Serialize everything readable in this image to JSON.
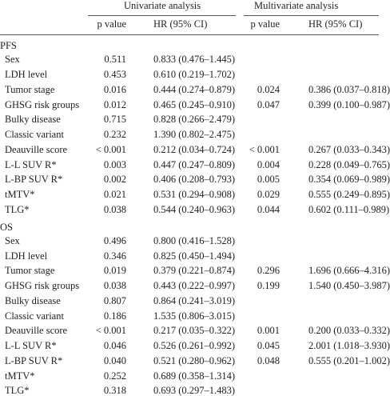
{
  "table": {
    "groups": [
      "Univariate analysis",
      "Multivariate analysis"
    ],
    "subheaders": [
      "p value",
      "HR (95% CI)",
      "p value",
      "HR (95% CI)"
    ],
    "sections": [
      {
        "label": "PFS",
        "rows": [
          [
            "Sex",
            "0.511",
            "0.833 (0.476–1.445)",
            null,
            null
          ],
          [
            "LDH level",
            "0.453",
            "0.610 (0.219–1.702)",
            null,
            null
          ],
          [
            "Tumor stage",
            "0.016",
            "0.444 (0.274–0.879)",
            "0.024",
            "0.386 (0.037–0.818)"
          ],
          [
            "GHSG risk groups",
            "0.012",
            "0.465 (0.245–0.910)",
            "0.047",
            "0.399 (0.100–0.987)"
          ],
          [
            "Bulky disease",
            "0.715",
            "0.828 (0.266–2.479)",
            null,
            null
          ],
          [
            "Classic variant",
            "0.232",
            "1.390 (0.802–2.475)",
            null,
            null
          ],
          [
            "Deauville score",
            "< 0.001",
            "0.212 (0.034–0.724)",
            "< 0.001",
            "0.267 (0.033–0.343)"
          ],
          [
            "L-L SUV R*",
            "0.003",
            "0.447 (0.247–0.809)",
            "0.004",
            "0.228 (0.049–0.765)"
          ],
          [
            "L-BP SUV R*",
            "0.002",
            "0.406 (0.208–0.793)",
            "0.005",
            "0.354 (0.069–0.989)"
          ],
          [
            "tMTV*",
            "0.021",
            "0.531 (0.294–0.908)",
            "0.029",
            "0.555 (0.249–0.895)"
          ],
          [
            "TLG*",
            "0.038",
            "0.544 (0.240–0.963)",
            "0.044",
            "0.602 (0.111–0.989)"
          ]
        ]
      },
      {
        "label": "OS",
        "rows": [
          [
            "Sex",
            "0.496",
            "0.800 (0.416–1.528)",
            null,
            null
          ],
          [
            "LDH level",
            "0.346",
            "0.825 (0.450–1.494)",
            null,
            null
          ],
          [
            "Tumor stage",
            "0.019",
            "0.379 (0.221–0.874)",
            "0.296",
            "1.696 (0.666–4.316)"
          ],
          [
            "GHSG risk groups",
            "0.038",
            "0.443 (0.222–0.997)",
            "0.199",
            "1.540 (0.450–3.987)"
          ],
          [
            "Bulky disease",
            "0.807",
            "0.864 (0.241–3.019)",
            null,
            null
          ],
          [
            "Classic variant",
            "0.186",
            "1.535 (0.806–3.015)",
            null,
            null
          ],
          [
            "Deauville score",
            "< 0.001",
            "0.217 (0.035–0.322)",
            "0.001",
            "0.200 (0.033–0.332)"
          ],
          [
            "L-L SUV R*",
            "0.046",
            "0.526 (0.261–0.992)",
            "0.045",
            "2.001 (1.018–3.930)"
          ],
          [
            "L-BP SUV R*",
            "0.040",
            "0.521 (0.280–0.962)",
            "0.048",
            "0.555 (0.201–1.002)"
          ],
          [
            "tMTV*",
            "0.252",
            "0.689 (0.358–1.314)",
            null,
            null
          ],
          [
            "TLG*",
            "0.318",
            "0.693 (0.297–1.483)",
            null,
            null
          ]
        ]
      }
    ]
  }
}
